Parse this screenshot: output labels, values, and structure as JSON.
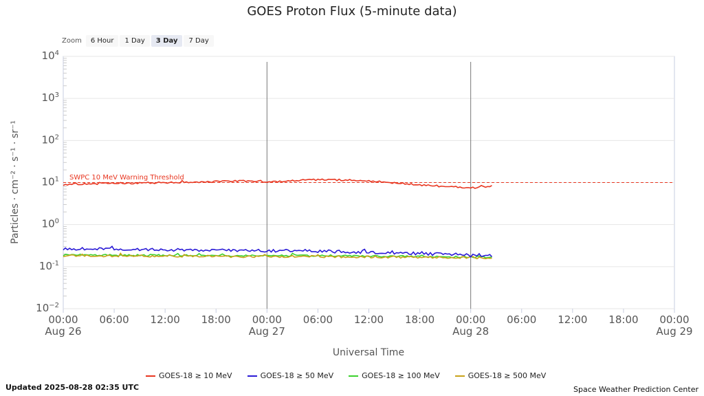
{
  "title": "GOES Proton Flux (5-minute data)",
  "zoom": {
    "label": "Zoom",
    "buttons": [
      "6 Hour",
      "1 Day",
      "3 Day",
      "7 Day"
    ],
    "active": "3 Day"
  },
  "updated": "Updated 2025-08-28 02:35 UTC",
  "credit": "Space Weather Prediction Center",
  "colors": {
    "s10": "#e8351f",
    "s50": "#2a1ad6",
    "s100": "#3bd12c",
    "s500": "#c8a219",
    "threshold": "#e8351f",
    "grid": "#e6e6e6",
    "day_line": "#777777"
  },
  "chart_data": {
    "type": "line",
    "title": "GOES Proton Flux (5-minute data)",
    "xlabel": "Universal Time",
    "ylabel": "Particles · cm⁻² · s⁻¹ · sr⁻¹",
    "yscale": "log",
    "ylim_exp": [
      -2,
      4
    ],
    "y_ticks": [
      {
        "base": "10",
        "exp": "4"
      },
      {
        "base": "10",
        "exp": "3"
      },
      {
        "base": "10",
        "exp": "2"
      },
      {
        "base": "10",
        "exp": "1"
      },
      {
        "base": "10",
        "exp": "0"
      },
      {
        "base": "10",
        "exp": "-1"
      },
      {
        "base": "10",
        "exp": "−2"
      }
    ],
    "xlim_hours": [
      0,
      72
    ],
    "x_ticks": [
      {
        "hour": 0,
        "time": "00:00",
        "date": "Aug 26"
      },
      {
        "hour": 6,
        "time": "06:00",
        "date": ""
      },
      {
        "hour": 12,
        "time": "12:00",
        "date": ""
      },
      {
        "hour": 18,
        "time": "18:00",
        "date": ""
      },
      {
        "hour": 24,
        "time": "00:00",
        "date": "Aug 27"
      },
      {
        "hour": 30,
        "time": "06:00",
        "date": ""
      },
      {
        "hour": 36,
        "time": "12:00",
        "date": ""
      },
      {
        "hour": 42,
        "time": "18:00",
        "date": ""
      },
      {
        "hour": 48,
        "time": "00:00",
        "date": "Aug 28"
      },
      {
        "hour": 54,
        "time": "06:00",
        "date": ""
      },
      {
        "hour": 60,
        "time": "12:00",
        "date": ""
      },
      {
        "hour": 66,
        "time": "18:00",
        "date": ""
      },
      {
        "hour": 72,
        "time": "00:00",
        "date": "Aug 29"
      }
    ],
    "day_lines_hours": [
      24,
      48
    ],
    "threshold": {
      "label": "SWPC 10 MeV Warning Threshold",
      "value": 10
    },
    "series": [
      {
        "name": "GOES-18 ≥ 10 MeV",
        "color_key": "s10",
        "x": [
          0,
          3,
          6,
          9,
          12,
          15,
          18,
          21,
          24,
          27,
          30,
          33,
          36,
          39,
          42,
          45,
          48,
          50.6
        ],
        "log10": [
          0.95,
          0.97,
          0.98,
          0.99,
          1.0,
          1.01,
          1.02,
          1.04,
          1.02,
          1.04,
          1.07,
          1.06,
          1.04,
          0.99,
          0.94,
          0.91,
          0.87,
          0.92
        ]
      },
      {
        "name": "GOES-18 ≥ 50 MeV",
        "color_key": "s50",
        "x": [
          0,
          6,
          12,
          18,
          24,
          30,
          36,
          42,
          48,
          50.6
        ],
        "log10": [
          -0.57,
          -0.58,
          -0.6,
          -0.61,
          -0.62,
          -0.63,
          -0.66,
          -0.69,
          -0.72,
          -0.73
        ]
      },
      {
        "name": "GOES-18 ≥ 100 MeV",
        "color_key": "s100",
        "x": [
          0,
          6,
          12,
          18,
          24,
          30,
          36,
          42,
          48,
          50.6
        ],
        "log10": [
          -0.72,
          -0.73,
          -0.73,
          -0.74,
          -0.74,
          -0.74,
          -0.75,
          -0.76,
          -0.77,
          -0.78
        ]
      },
      {
        "name": "GOES-18 ≥ 500 MeV",
        "color_key": "s500",
        "x": [
          0,
          6,
          12,
          18,
          24,
          30,
          36,
          42,
          48,
          50.6
        ],
        "log10": [
          -0.74,
          -0.75,
          -0.75,
          -0.76,
          -0.76,
          -0.76,
          -0.77,
          -0.78,
          -0.78,
          -0.79
        ]
      }
    ]
  }
}
